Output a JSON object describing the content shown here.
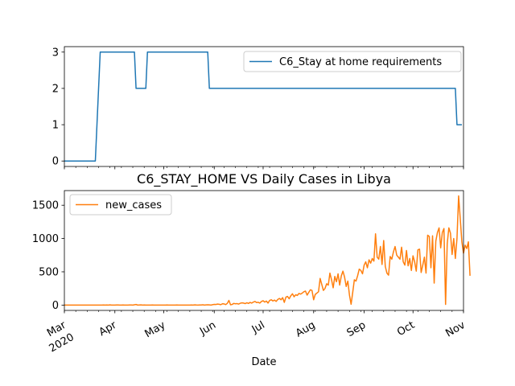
{
  "figure": {
    "title": "C6_STAY_HOME VS Daily Cases in Libya",
    "xlabel": "Date"
  },
  "chart_data": [
    {
      "type": "line",
      "series": [
        {
          "name": "C6_Stay at home requirements",
          "color": "#1f77b4",
          "x": [
            "2020-03-01",
            "2020-03-20",
            "2020-03-21",
            "2020-03-22",
            "2020-03-23",
            "2020-04-13",
            "2020-04-14",
            "2020-04-20",
            "2020-04-21",
            "2020-05-28",
            "2020-05-29",
            "2020-10-27",
            "2020-10-28",
            "2020-10-31"
          ],
          "values": [
            0,
            0,
            1,
            2,
            3,
            3,
            2,
            2,
            3,
            3,
            2,
            2,
            1,
            1
          ]
        }
      ],
      "ylim": [
        -0.15,
        3.15
      ],
      "yticks": [
        0,
        1,
        2,
        3
      ],
      "legend": "upper right"
    },
    {
      "type": "line",
      "series": [
        {
          "name": "new_cases",
          "color": "#ff7f0e",
          "x_start": "2020-03-01",
          "x_step": "1 day",
          "values": [
            0,
            0,
            0,
            0,
            0,
            0,
            0,
            0,
            0,
            0,
            0,
            0,
            0,
            0,
            0,
            0,
            0,
            0,
            0,
            0,
            0,
            0,
            0,
            0,
            2,
            0,
            1,
            0,
            3,
            0,
            0,
            0,
            2,
            1,
            0,
            0,
            2,
            0,
            0,
            0,
            1,
            2,
            0,
            5,
            9,
            0,
            2,
            3,
            0,
            1,
            0,
            0,
            0,
            0,
            1,
            0,
            0,
            0,
            0,
            0,
            0,
            0,
            0,
            1,
            0,
            0,
            0,
            0,
            0,
            1,
            0,
            0,
            0,
            0,
            0,
            0,
            0,
            0,
            1,
            0,
            3,
            1,
            0,
            2,
            1,
            4,
            0,
            3,
            5,
            3,
            0,
            6,
            10,
            9,
            15,
            12,
            6,
            20,
            18,
            8,
            25,
            70,
            5,
            10,
            25,
            20,
            22,
            15,
            28,
            33,
            30,
            22,
            35,
            25,
            40,
            30,
            45,
            55,
            38,
            42,
            30,
            55,
            65,
            45,
            60,
            30,
            70,
            80,
            62,
            75,
            55,
            85,
            100,
            80,
            112,
            40,
            120,
            130,
            95,
            140,
            170,
            125,
            155,
            145,
            175,
            165,
            180,
            200,
            210,
            150,
            190,
            230,
            220,
            80,
            160,
            180,
            200,
            400,
            310,
            220,
            250,
            320,
            300,
            480,
            380,
            260,
            430,
            350,
            470,
            300,
            440,
            510,
            420,
            280,
            360,
            150,
            12,
            190,
            380,
            360,
            440,
            540,
            520,
            470,
            600,
            650,
            560,
            680,
            630,
            700,
            660,
            1070,
            720,
            690,
            880,
            610,
            970,
            580,
            480,
            450,
            730,
            690,
            800,
            880,
            750,
            720,
            690,
            870,
            650,
            600,
            820,
            590,
            700,
            520,
            740,
            650,
            510,
            830,
            840,
            490,
            600,
            720,
            480,
            1050,
            1030,
            560,
            1040,
            330,
            960,
            1090,
            1160,
            860,
            1090,
            1150,
            10,
            920,
            1160,
            1080,
            760,
            1000,
            700,
            1000,
            1640,
            1300,
            950,
            780,
            900,
            850,
            950,
            440
          ]
        }
      ],
      "ylim": [
        -80,
        1720
      ],
      "yticks": [
        0,
        500,
        1000,
        1500
      ],
      "legend": "upper left"
    }
  ],
  "x_axis": {
    "range": [
      "2020-03-01",
      "2020-11-01"
    ],
    "major_ticks": [
      {
        "date": "2020-03-01",
        "label": "Mar",
        "sublabel": "2020"
      },
      {
        "date": "2020-04-01",
        "label": "Apr",
        "sublabel": ""
      },
      {
        "date": "2020-05-01",
        "label": "May",
        "sublabel": ""
      },
      {
        "date": "2020-06-01",
        "label": "Jun",
        "sublabel": ""
      },
      {
        "date": "2020-07-01",
        "label": "Jul",
        "sublabel": ""
      },
      {
        "date": "2020-08-01",
        "label": "Aug",
        "sublabel": ""
      },
      {
        "date": "2020-09-01",
        "label": "Sep",
        "sublabel": ""
      },
      {
        "date": "2020-10-01",
        "label": "Oct",
        "sublabel": ""
      },
      {
        "date": "2020-11-01",
        "label": "Nov",
        "sublabel": ""
      }
    ]
  }
}
